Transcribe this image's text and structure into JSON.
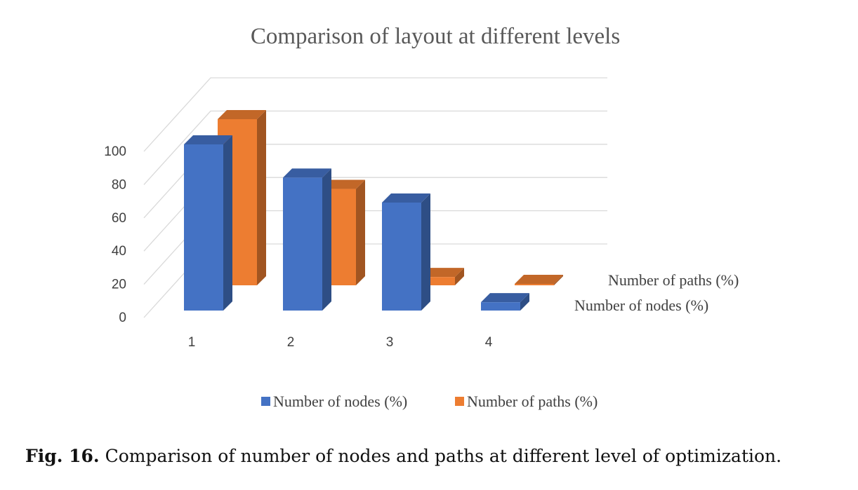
{
  "chart_data": {
    "type": "bar",
    "title": "Comparison of layout at different levels",
    "categories": [
      "1",
      "2",
      "3",
      "4"
    ],
    "series": [
      {
        "name": "Number of nodes (%)",
        "values": [
          100,
          80,
          65,
          5
        ],
        "color": "#4472C4"
      },
      {
        "name": "Number of paths (%)",
        "values": [
          100,
          58,
          5,
          0.5
        ],
        "color": "#ED7D31"
      }
    ],
    "ylim": [
      0,
      100
    ],
    "yticks": [
      "0",
      "20",
      "40",
      "60",
      "80",
      "100"
    ],
    "grid": true,
    "projection": "3d",
    "legend": "bottom"
  },
  "caption": {
    "label": "Fig. 16.",
    "text": "Comparison of number of nodes and paths at different level of optimization."
  }
}
